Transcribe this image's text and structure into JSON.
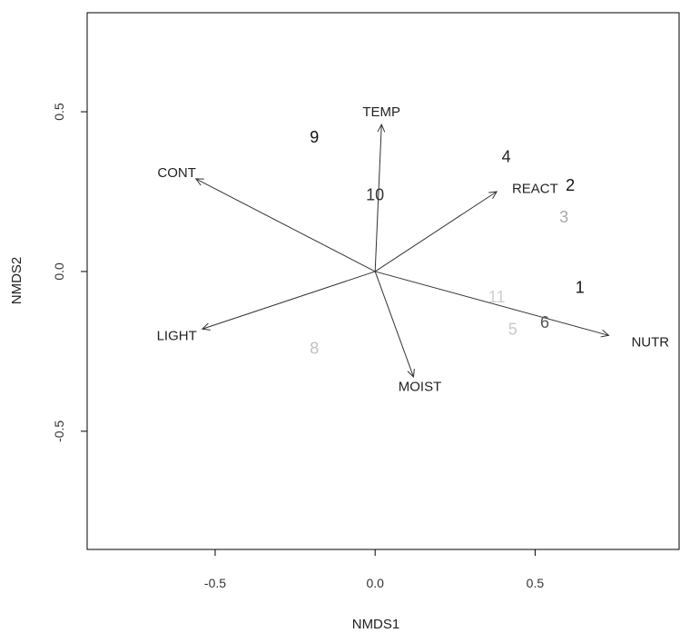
{
  "chart_data": {
    "type": "scatter",
    "title": "",
    "xlabel": "NMDS1",
    "ylabel": "NMDS2",
    "xlim": [
      -0.9,
      0.95
    ],
    "ylim": [
      -0.87,
      0.81
    ],
    "grid": false,
    "x_ticks": [
      -0.5,
      0.0,
      0.5
    ],
    "x_tick_labels": [
      "-0.5",
      "0.0",
      "0.5"
    ],
    "y_ticks": [
      -0.5,
      0.0,
      0.5
    ],
    "y_tick_labels": [
      "-0.5",
      "0.0",
      "0.5"
    ],
    "sites": [
      {
        "label": "1",
        "x": 0.64,
        "y": -0.05,
        "color": "#111111"
      },
      {
        "label": "2",
        "x": 0.61,
        "y": 0.27,
        "color": "#111111"
      },
      {
        "label": "3",
        "x": 0.59,
        "y": 0.17,
        "color": "#aaaaaa"
      },
      {
        "label": "4",
        "x": 0.41,
        "y": 0.36,
        "color": "#222222"
      },
      {
        "label": "5",
        "x": 0.43,
        "y": -0.18,
        "color": "#c8c8c8"
      },
      {
        "label": "6",
        "x": 0.53,
        "y": -0.16,
        "color": "#555555"
      },
      {
        "label": "8",
        "x": -0.19,
        "y": -0.24,
        "color": "#c0c0c0"
      },
      {
        "label": "9",
        "x": -0.19,
        "y": 0.42,
        "color": "#111111"
      },
      {
        "label": "10",
        "x": 0.0,
        "y": 0.24,
        "color": "#333333"
      },
      {
        "label": "11",
        "x": 0.38,
        "y": -0.08,
        "color": "#d0d0d0"
      }
    ],
    "vectors": [
      {
        "label": "TEMP",
        "x": 0.02,
        "y": 0.46
      },
      {
        "label": "REACT",
        "x": 0.38,
        "y": 0.25
      },
      {
        "label": "NUTR",
        "x": 0.73,
        "y": -0.2
      },
      {
        "label": "MOIST",
        "x": 0.12,
        "y": -0.33
      },
      {
        "label": "LIGHT",
        "x": -0.54,
        "y": -0.18
      },
      {
        "label": "CONT",
        "x": -0.56,
        "y": 0.29
      }
    ],
    "vector_label_positions": [
      {
        "label": "TEMP",
        "x": 0.02,
        "y": 0.5
      },
      {
        "label": "REACT",
        "x": 0.5,
        "y": 0.26
      },
      {
        "label": "NUTR",
        "x": 0.86,
        "y": -0.22
      },
      {
        "label": "MOIST",
        "x": 0.14,
        "y": -0.36
      },
      {
        "label": "LIGHT",
        "x": -0.62,
        "y": -0.2
      },
      {
        "label": "CONT",
        "x": -0.62,
        "y": 0.31
      }
    ]
  }
}
